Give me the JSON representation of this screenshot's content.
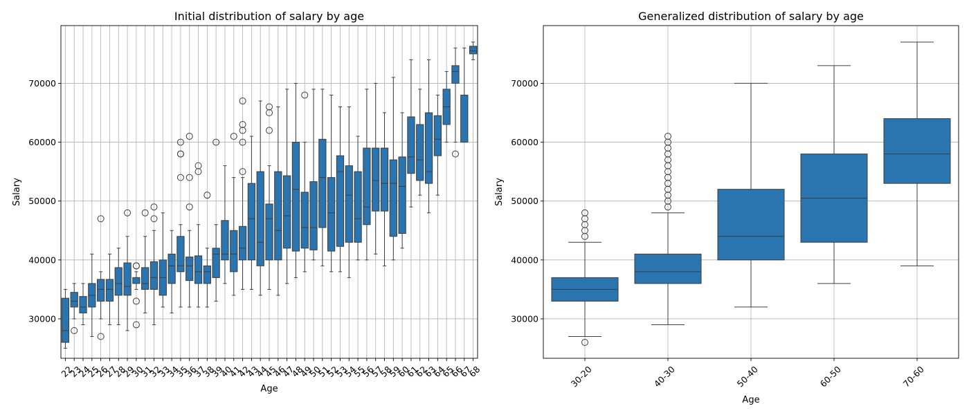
{
  "chart_data": [
    {
      "type": "box",
      "title": "Initial distribution of salary by age",
      "xlabel": "Age",
      "ylabel": "Salary",
      "ylim": [
        23300,
        79800
      ],
      "yticks": [
        30000,
        40000,
        50000,
        60000,
        70000
      ],
      "grid": true,
      "box_color": "#2a74b0",
      "categories": [
        "22",
        "23",
        "24",
        "25",
        "26",
        "27",
        "28",
        "29",
        "30",
        "31",
        "32",
        "33",
        "34",
        "35",
        "36",
        "37",
        "38",
        "39",
        "40",
        "41",
        "42",
        "43",
        "44",
        "45",
        "46",
        "47",
        "48",
        "49",
        "50",
        "51",
        "52",
        "53",
        "54",
        "55",
        "56",
        "57",
        "58",
        "59",
        "60",
        "61",
        "62",
        "63",
        "64",
        "65",
        "66",
        "67",
        "68"
      ],
      "boxes": [
        {
          "wlo": 25000,
          "q1": 26000,
          "med": 28000,
          "q3": 33500,
          "whi": 35000,
          "fliers": []
        },
        {
          "wlo": 30000,
          "q1": 32000,
          "med": 33000,
          "q3": 34500,
          "whi": 36000,
          "fliers": [
            28000
          ]
        },
        {
          "wlo": 29000,
          "q1": 31000,
          "med": 32000,
          "q3": 33800,
          "whi": 36000,
          "fliers": []
        },
        {
          "wlo": 27000,
          "q1": 32000,
          "med": 34000,
          "q3": 36000,
          "whi": 41000,
          "fliers": []
        },
        {
          "wlo": 30000,
          "q1": 33000,
          "med": 35000,
          "q3": 36700,
          "whi": 38000,
          "fliers": [
            47000,
            27000
          ]
        },
        {
          "wlo": 29000,
          "q1": 33000,
          "med": 35000,
          "q3": 36700,
          "whi": 41000,
          "fliers": []
        },
        {
          "wlo": 29000,
          "q1": 34000,
          "med": 36000,
          "q3": 38700,
          "whi": 42000,
          "fliers": []
        },
        {
          "wlo": 28000,
          "q1": 34000,
          "med": 35500,
          "q3": 39500,
          "whi": 44000,
          "fliers": [
            48000
          ]
        },
        {
          "wlo": 35000,
          "q1": 36000,
          "med": 37000,
          "q3": 37000,
          "whi": 38000,
          "fliers": [
            39000,
            39000,
            33000,
            29000
          ]
        },
        {
          "wlo": 31000,
          "q1": 35000,
          "med": 36000,
          "q3": 38700,
          "whi": 44000,
          "fliers": [
            48000
          ]
        },
        {
          "wlo": 29000,
          "q1": 35000,
          "med": 37000,
          "q3": 39700,
          "whi": 45000,
          "fliers": [
            49000,
            47000
          ]
        },
        {
          "wlo": 32000,
          "q1": 34000,
          "med": 37000,
          "q3": 40000,
          "whi": 48000,
          "fliers": []
        },
        {
          "wlo": 31000,
          "q1": 36000,
          "med": 39000,
          "q3": 41000,
          "whi": 45000,
          "fliers": []
        },
        {
          "wlo": 32000,
          "q1": 38000,
          "med": 39000,
          "q3": 44000,
          "whi": 46000,
          "fliers": [
            60000,
            58000,
            58000,
            54000
          ]
        },
        {
          "wlo": 32000,
          "q1": 36500,
          "med": 39000,
          "q3": 40500,
          "whi": 45000,
          "fliers": [
            61000,
            54000,
            49000
          ]
        },
        {
          "wlo": 32000,
          "q1": 36000,
          "med": 38000,
          "q3": 40700,
          "whi": 46000,
          "fliers": [
            56000,
            55000
          ]
        },
        {
          "wlo": 32000,
          "q1": 36000,
          "med": 38000,
          "q3": 39000,
          "whi": 42000,
          "fliers": [
            51000
          ]
        },
        {
          "wlo": 33000,
          "q1": 37000,
          "med": 41000,
          "q3": 42000,
          "whi": 46000,
          "fliers": [
            60000
          ]
        },
        {
          "wlo": 36000,
          "q1": 40000,
          "med": 41000,
          "q3": 46700,
          "whi": 56000,
          "fliers": []
        },
        {
          "wlo": 34000,
          "q1": 38000,
          "med": 41000,
          "q3": 45000,
          "whi": 54000,
          "fliers": [
            61000
          ]
        },
        {
          "wlo": 35000,
          "q1": 40000,
          "med": 42000,
          "q3": 45700,
          "whi": 54000,
          "fliers": [
            67000,
            63000,
            62000,
            60000,
            55000
          ]
        },
        {
          "wlo": 35000,
          "q1": 40000,
          "med": 47000,
          "q3": 53000,
          "whi": 61000,
          "fliers": []
        },
        {
          "wlo": 34000,
          "q1": 39000,
          "med": 43000,
          "q3": 55000,
          "whi": 67000,
          "fliers": []
        },
        {
          "wlo": 35000,
          "q1": 40000,
          "med": 47000,
          "q3": 49500,
          "whi": 56000,
          "fliers": [
            66000,
            65000,
            62000
          ]
        },
        {
          "wlo": 34000,
          "q1": 40000,
          "med": 45000,
          "q3": 55000,
          "whi": 66000,
          "fliers": []
        },
        {
          "wlo": 36000,
          "q1": 42000,
          "med": 47500,
          "q3": 54300,
          "whi": 69000,
          "fliers": []
        },
        {
          "wlo": 37000,
          "q1": 41500,
          "med": 52000,
          "q3": 60000,
          "whi": 70000,
          "fliers": []
        },
        {
          "wlo": 38000,
          "q1": 42000,
          "med": 45500,
          "q3": 51500,
          "whi": 60000,
          "fliers": [
            68000
          ]
        },
        {
          "wlo": 40000,
          "q1": 41700,
          "med": 45500,
          "q3": 53300,
          "whi": 69000,
          "fliers": []
        },
        {
          "wlo": 39000,
          "q1": 45500,
          "med": 54000,
          "q3": 60500,
          "whi": 69000,
          "fliers": []
        },
        {
          "wlo": 38000,
          "q1": 41500,
          "med": 48000,
          "q3": 54000,
          "whi": 68000,
          "fliers": []
        },
        {
          "wlo": 38000,
          "q1": 42300,
          "med": 55000,
          "q3": 57700,
          "whi": 66000,
          "fliers": []
        },
        {
          "wlo": 37000,
          "q1": 43000,
          "med": 51000,
          "q3": 56000,
          "whi": 66000,
          "fliers": []
        },
        {
          "wlo": 40000,
          "q1": 43000,
          "med": 47000,
          "q3": 55000,
          "whi": 61000,
          "fliers": []
        },
        {
          "wlo": 40000,
          "q1": 46000,
          "med": 49000,
          "q3": 59000,
          "whi": 69000,
          "fliers": []
        },
        {
          "wlo": 41000,
          "q1": 48300,
          "med": 53500,
          "q3": 59000,
          "whi": 70000,
          "fliers": []
        },
        {
          "wlo": 39000,
          "q1": 48300,
          "med": 53000,
          "q3": 59000,
          "whi": 65000,
          "fliers": []
        },
        {
          "wlo": 40000,
          "q1": 44000,
          "med": 53000,
          "q3": 57000,
          "whi": 71000,
          "fliers": []
        },
        {
          "wlo": 42000,
          "q1": 44500,
          "med": 52500,
          "q3": 57500,
          "whi": 65000,
          "fliers": []
        },
        {
          "wlo": 49000,
          "q1": 54700,
          "med": 57500,
          "q3": 64300,
          "whi": 74000,
          "fliers": []
        },
        {
          "wlo": 51000,
          "q1": 53500,
          "med": 57000,
          "q3": 63000,
          "whi": 69000,
          "fliers": []
        },
        {
          "wlo": 48000,
          "q1": 53000,
          "med": 55000,
          "q3": 65000,
          "whi": 74000,
          "fliers": []
        },
        {
          "wlo": 51000,
          "q1": 57700,
          "med": 60500,
          "q3": 64500,
          "whi": 68000,
          "fliers": []
        },
        {
          "wlo": 60000,
          "q1": 63000,
          "med": 66000,
          "q3": 69000,
          "whi": 72000,
          "fliers": []
        },
        {
          "wlo": 60000,
          "q1": 70000,
          "med": 72000,
          "q3": 73000,
          "whi": 76000,
          "fliers": [
            58000
          ]
        },
        {
          "wlo": 60000,
          "q1": 60000,
          "med": 60000,
          "q3": 68000,
          "whi": 76000,
          "fliers": []
        },
        {
          "wlo": 74000,
          "q1": 75000,
          "med": 75500,
          "q3": 76300,
          "whi": 77000,
          "fliers": []
        }
      ]
    },
    {
      "type": "box",
      "title": "Generalized distribution of salary by age",
      "xlabel": "Age",
      "ylabel": "Salary",
      "ylim": [
        23300,
        79800
      ],
      "yticks": [
        30000,
        40000,
        50000,
        60000,
        70000
      ],
      "grid": true,
      "box_color": "#2a74b0",
      "categories": [
        "30-20",
        "40-30",
        "50-40",
        "60-50",
        "70-60"
      ],
      "boxes": [
        {
          "wlo": 27000,
          "q1": 33000,
          "med": 35000,
          "q3": 37000,
          "whi": 43000,
          "fliers": [
            44000,
            45000,
            46000,
            47000,
            48000,
            26000
          ]
        },
        {
          "wlo": 29000,
          "q1": 36000,
          "med": 38000,
          "q3": 41000,
          "whi": 48000,
          "fliers": [
            49000,
            50000,
            51000,
            52000,
            53000,
            54000,
            55000,
            56000,
            57000,
            58000,
            59000,
            60000,
            61000
          ]
        },
        {
          "wlo": 32000,
          "q1": 40000,
          "med": 44000,
          "q3": 52000,
          "whi": 70000,
          "fliers": []
        },
        {
          "wlo": 36000,
          "q1": 43000,
          "med": 50500,
          "q3": 58000,
          "whi": 73000,
          "fliers": []
        },
        {
          "wlo": 39000,
          "q1": 53000,
          "med": 58000,
          "q3": 64000,
          "whi": 77000,
          "fliers": []
        }
      ]
    }
  ]
}
